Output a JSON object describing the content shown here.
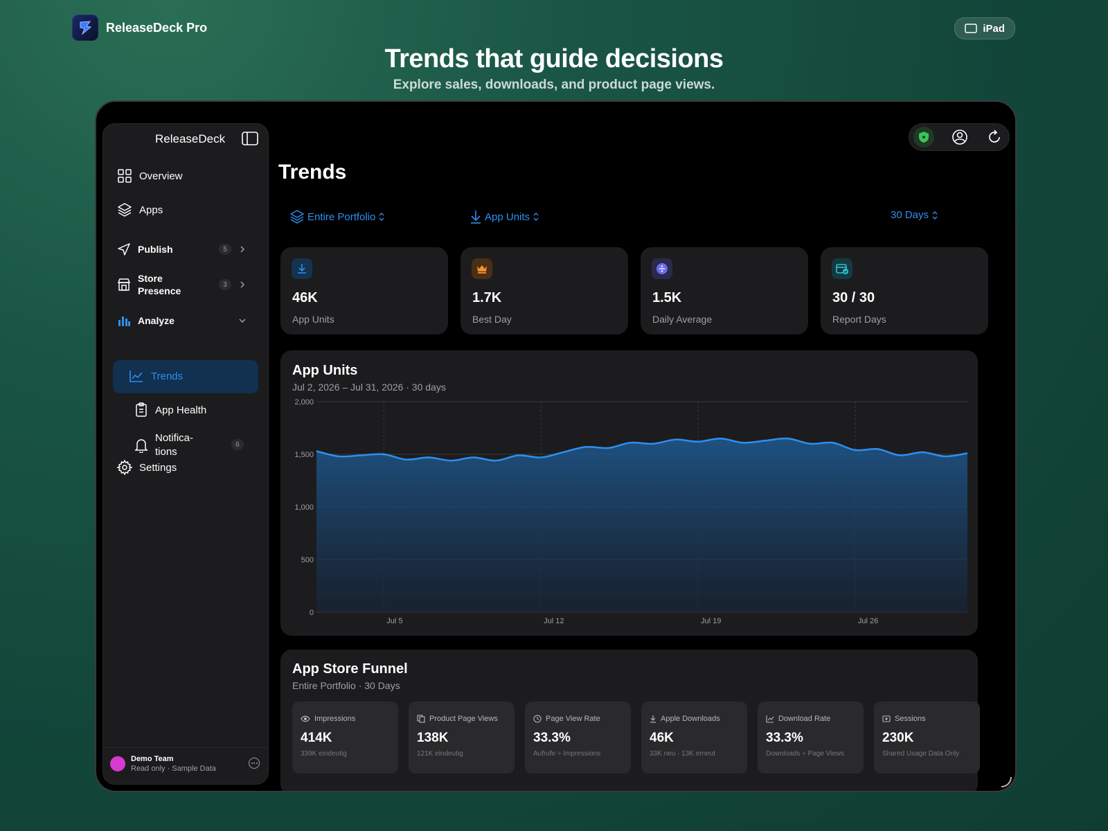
{
  "header": {
    "brand_name": "ReleaseDeck Pro",
    "device_label": "iPad",
    "hero_title": "Trends that guide decisions",
    "hero_subtitle": "Explore sales, downloads, and product page views."
  },
  "sidebar": {
    "title": "ReleaseDeck",
    "items": [
      {
        "label": "Overview",
        "icon": "grid-icon"
      },
      {
        "label": "Apps",
        "icon": "layers-icon"
      },
      {
        "label": "Publish",
        "icon": "send-icon",
        "badge": "5"
      },
      {
        "label": "Store\nPresence",
        "icon": "storefront-icon",
        "badge": "3"
      },
      {
        "label": "Analyze",
        "icon": "bar-chart-icon"
      },
      {
        "label": "Trends",
        "icon": "line-chart-icon",
        "active": true
      },
      {
        "label": "App Health",
        "icon": "clipboard-icon"
      },
      {
        "label": "Notifica-\ntions",
        "icon": "bell-icon",
        "badge": "6"
      },
      {
        "label": "Settings",
        "icon": "gear-icon"
      }
    ],
    "footer": {
      "team_name": "Demo Team",
      "team_sub": "Read only · Sample Data"
    }
  },
  "main": {
    "title": "Trends",
    "filters": {
      "scope": "Entire Portfolio",
      "metric": "App Units",
      "range": "30 Days"
    },
    "stats": [
      {
        "value": "46K",
        "label": "App Units",
        "icon": "download-icon",
        "color": "#2e8ff0"
      },
      {
        "value": "1.7K",
        "label": "Best Day",
        "icon": "crown-icon",
        "color": "#f0902e"
      },
      {
        "value": "1.5K",
        "label": "Daily Average",
        "icon": "divide-icon",
        "color": "#6b6cf0"
      },
      {
        "value": "30 / 30",
        "label": "Report Days",
        "icon": "calendar-check-icon",
        "color": "#2ec4d6"
      }
    ],
    "chart": {
      "title": "App Units",
      "subtitle": "Jul 2, 2026 – Jul 31, 2026 · 30 days"
    },
    "funnel": {
      "title": "App Store Funnel",
      "subtitle": "Entire Portfolio · 30 Days",
      "cards": [
        {
          "label": "Impressions",
          "value": "414K",
          "sub": "339K eindeutig",
          "icon": "eye-icon"
        },
        {
          "label": "Product Page Views",
          "value": "138K",
          "sub": "121K eindeutig",
          "icon": "pages-icon"
        },
        {
          "label": "Page View Rate",
          "value": "33.3%",
          "sub": "Aufrufe ÷ Impressions",
          "icon": "clock-icon"
        },
        {
          "label": "Apple Downloads",
          "value": "46K",
          "sub": "33K neu · 13K erneut",
          "icon": "download-icon"
        },
        {
          "label": "Download Rate",
          "value": "33.3%",
          "sub": "Downloads ÷ Page Views",
          "icon": "chart-icon"
        },
        {
          "label": "Sessions",
          "value": "230K",
          "sub": "Shared Usage Data Only",
          "icon": "sessions-icon"
        }
      ]
    }
  },
  "chart_data": {
    "type": "area",
    "title": "App Units",
    "x": [
      "Jul 2",
      "Jul 3",
      "Jul 4",
      "Jul 5",
      "Jul 6",
      "Jul 7",
      "Jul 8",
      "Jul 9",
      "Jul 10",
      "Jul 11",
      "Jul 12",
      "Jul 13",
      "Jul 14",
      "Jul 15",
      "Jul 16",
      "Jul 17",
      "Jul 18",
      "Jul 19",
      "Jul 20",
      "Jul 21",
      "Jul 22",
      "Jul 23",
      "Jul 24",
      "Jul 25",
      "Jul 26",
      "Jul 27",
      "Jul 28",
      "Jul 29",
      "Jul 30",
      "Jul 31"
    ],
    "series": [
      {
        "values": [
          1530,
          1480,
          1490,
          1500,
          1450,
          1470,
          1440,
          1470,
          1440,
          1490,
          1470,
          1520,
          1570,
          1560,
          1610,
          1600,
          1640,
          1620,
          1650,
          1610,
          1630,
          1650,
          1600,
          1610,
          1540,
          1550,
          1490,
          1520,
          1480,
          1510
        ]
      }
    ],
    "x_tick_labels": [
      "Jul 5",
      "Jul 12",
      "Jul 19",
      "Jul 26"
    ],
    "y_tick_labels": [
      "0",
      "500",
      "1,000",
      "1,500",
      "2,000"
    ],
    "ylim": [
      0,
      2000
    ],
    "grid": true,
    "color": "#2e8ff0"
  }
}
